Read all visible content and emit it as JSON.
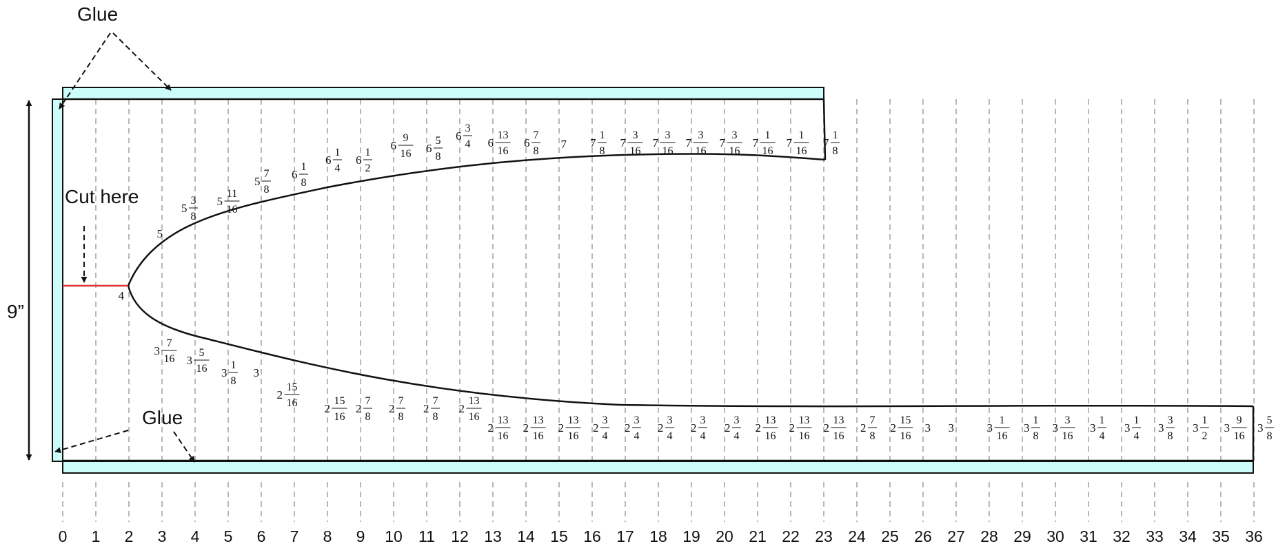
{
  "labels": {
    "glue_top": "Glue",
    "glue_bottom": "Glue",
    "cut_here": "Cut here",
    "height": "9”"
  },
  "colors": {
    "glue_strip": "#ccfdfb",
    "cut_line": "#e03030",
    "grid_line": "#b8b8b8",
    "outline": "#111111"
  },
  "axis_numbers": [
    "0",
    "1",
    "2",
    "3",
    "4",
    "5",
    "6",
    "7",
    "8",
    "9",
    "10",
    "11",
    "12",
    "13",
    "14",
    "15",
    "16",
    "17",
    "18",
    "19",
    "20",
    "21",
    "22",
    "23",
    "24",
    "25",
    "26",
    "27",
    "28",
    "29",
    "30",
    "31",
    "32",
    "33",
    "34",
    "35",
    "36"
  ],
  "upper_measurements": [
    {
      "w": "4"
    },
    {
      "w": "5"
    },
    {
      "w": "5",
      "n": "3",
      "d": "8"
    },
    {
      "w": "5",
      "n": "11",
      "d": "16"
    },
    {
      "w": "5",
      "n": "7",
      "d": "8"
    },
    {
      "w": "6",
      "n": "1",
      "d": "8"
    },
    {
      "w": "6",
      "n": "1",
      "d": "4"
    },
    {
      "w": "6",
      "n": "1",
      "d": "2"
    },
    {
      "w": "6",
      "n": "9",
      "d": "16"
    },
    {
      "w": "6",
      "n": "5",
      "d": "8"
    },
    {
      "w": "6",
      "n": "3",
      "d": "4"
    },
    {
      "w": "6",
      "n": "13",
      "d": "16"
    },
    {
      "w": "6",
      "n": "7",
      "d": "8"
    },
    {
      "w": "7"
    },
    {
      "w": "7",
      "n": "1",
      "d": "8"
    },
    {
      "w": "7",
      "n": "3",
      "d": "16"
    },
    {
      "w": "7",
      "n": "3",
      "d": "16"
    },
    {
      "w": "7",
      "n": "3",
      "d": "16"
    },
    {
      "w": "7",
      "n": "3",
      "d": "16"
    },
    {
      "w": "7",
      "n": "1",
      "d": "16"
    },
    {
      "w": "7",
      "n": "1",
      "d": "16"
    },
    {
      "w": "7",
      "n": "1",
      "d": "8"
    }
  ],
  "lower_measurements": [
    {
      "w": "3",
      "n": "7",
      "d": "16"
    },
    {
      "w": "3",
      "n": "5",
      "d": "16"
    },
    {
      "w": "3",
      "n": "1",
      "d": "8"
    },
    {
      "w": "3"
    },
    {
      "w": "2",
      "n": "15",
      "d": "16"
    },
    {
      "w": "2",
      "n": "15",
      "d": "16"
    },
    {
      "w": "2",
      "n": "7",
      "d": "8"
    },
    {
      "w": "2",
      "n": "7",
      "d": "8"
    },
    {
      "w": "2",
      "n": "7",
      "d": "8"
    },
    {
      "w": "2",
      "n": "13",
      "d": "16"
    },
    {
      "w": "2",
      "n": "13",
      "d": "16"
    },
    {
      "w": "2",
      "n": "13",
      "d": "16"
    },
    {
      "w": "2",
      "n": "13",
      "d": "16"
    },
    {
      "w": "2",
      "n": "3",
      "d": "4"
    },
    {
      "w": "2",
      "n": "3",
      "d": "4"
    },
    {
      "w": "2",
      "n": "3",
      "d": "4"
    },
    {
      "w": "2",
      "n": "3",
      "d": "4"
    },
    {
      "w": "2",
      "n": "3",
      "d": "4"
    },
    {
      "w": "2",
      "n": "13",
      "d": "16"
    },
    {
      "w": "2",
      "n": "13",
      "d": "16"
    },
    {
      "w": "2",
      "n": "13",
      "d": "16"
    },
    {
      "w": "2",
      "n": "7",
      "d": "8"
    },
    {
      "w": "2",
      "n": "15",
      "d": "16"
    },
    {
      "w": "3"
    },
    {
      "w": "3"
    },
    {
      "w": "3",
      "n": "1",
      "d": "16"
    },
    {
      "w": "3",
      "n": "1",
      "d": "8"
    },
    {
      "w": "3",
      "n": "3",
      "d": "16"
    },
    {
      "w": "3",
      "n": "1",
      "d": "4"
    },
    {
      "w": "3",
      "n": "1",
      "d": "4"
    },
    {
      "w": "3",
      "n": "3",
      "d": "8"
    },
    {
      "w": "3",
      "n": "1",
      "d": "2"
    },
    {
      "w": "3",
      "n": "9",
      "d": "16"
    },
    {
      "w": "3",
      "n": "5",
      "d": "8"
    }
  ]
}
